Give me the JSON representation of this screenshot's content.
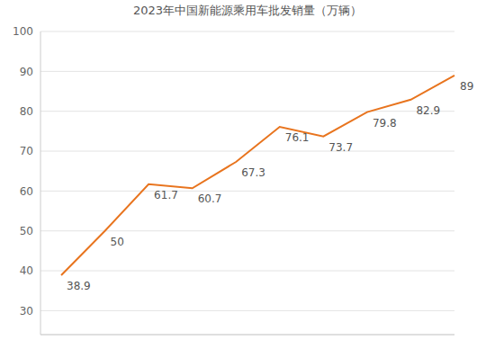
{
  "chart_data": {
    "type": "line",
    "title": "2023年中国新能源乘用车批发销量（万辆）",
    "categories": [
      null,
      null,
      null,
      null,
      null,
      null,
      null,
      null,
      null,
      null
    ],
    "values": [
      38.9,
      50,
      61.7,
      60.7,
      67.3,
      76.1,
      73.7,
      79.8,
      82.9,
      89
    ],
    "color": "#e8741e",
    "ylim": [
      24,
      100
    ],
    "yticks": [
      30,
      40,
      50,
      60,
      70,
      80,
      90,
      100
    ],
    "grid": true,
    "data_labels": true,
    "tick_labels": "y"
  }
}
